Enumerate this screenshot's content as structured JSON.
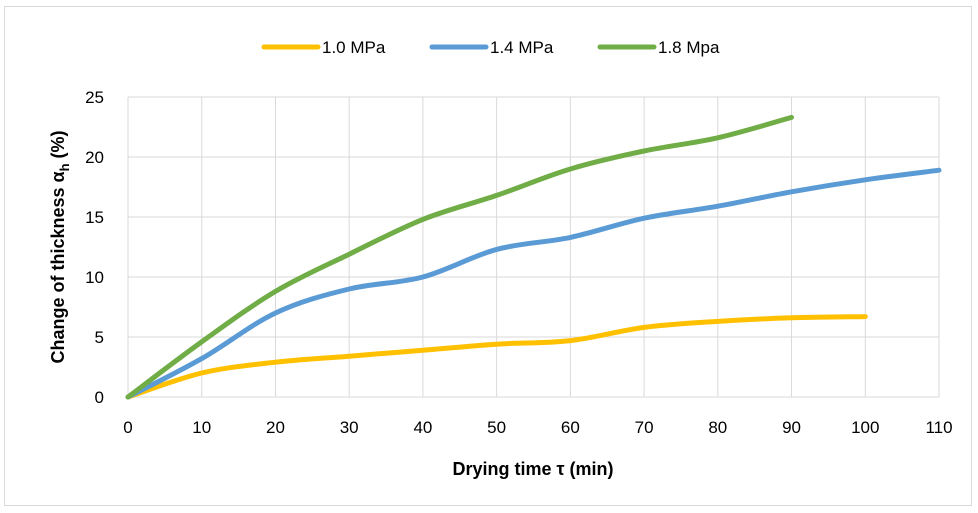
{
  "chart_data": {
    "type": "line",
    "xlabel": "Drying time τ (min)",
    "ylabel": {
      "prefix": "Change of thickness  α",
      "sub": "h",
      "suffix": " (%)"
    },
    "xlim": [
      0,
      110
    ],
    "ylim": [
      0,
      25
    ],
    "xticks": [
      0,
      10,
      20,
      30,
      40,
      50,
      60,
      70,
      80,
      90,
      100,
      110
    ],
    "yticks": [
      0,
      5,
      10,
      15,
      20,
      25
    ],
    "grid": true,
    "legend_position": "top",
    "series": [
      {
        "name": "1.0 MPa",
        "color": "#FFC000",
        "x": [
          0,
          10,
          20,
          30,
          40,
          50,
          60,
          70,
          80,
          90,
          100
        ],
        "y": [
          0,
          2.0,
          2.9,
          3.4,
          3.9,
          4.4,
          4.7,
          5.8,
          6.3,
          6.6,
          6.7
        ]
      },
      {
        "name": "1.4 MPa",
        "color": "#5B9BD5",
        "x": [
          0,
          10,
          20,
          30,
          40,
          50,
          60,
          70,
          80,
          90,
          100,
          110
        ],
        "y": [
          0,
          3.2,
          7.0,
          9.0,
          10.0,
          12.3,
          13.3,
          14.9,
          15.9,
          17.1,
          18.1,
          18.9
        ]
      },
      {
        "name": "1.8 Mpa",
        "color": "#70AD47",
        "x": [
          0,
          10,
          20,
          30,
          40,
          50,
          60,
          70,
          80,
          90
        ],
        "y": [
          0,
          4.6,
          8.8,
          11.9,
          14.8,
          16.8,
          19.0,
          20.5,
          21.6,
          23.3
        ]
      }
    ]
  }
}
